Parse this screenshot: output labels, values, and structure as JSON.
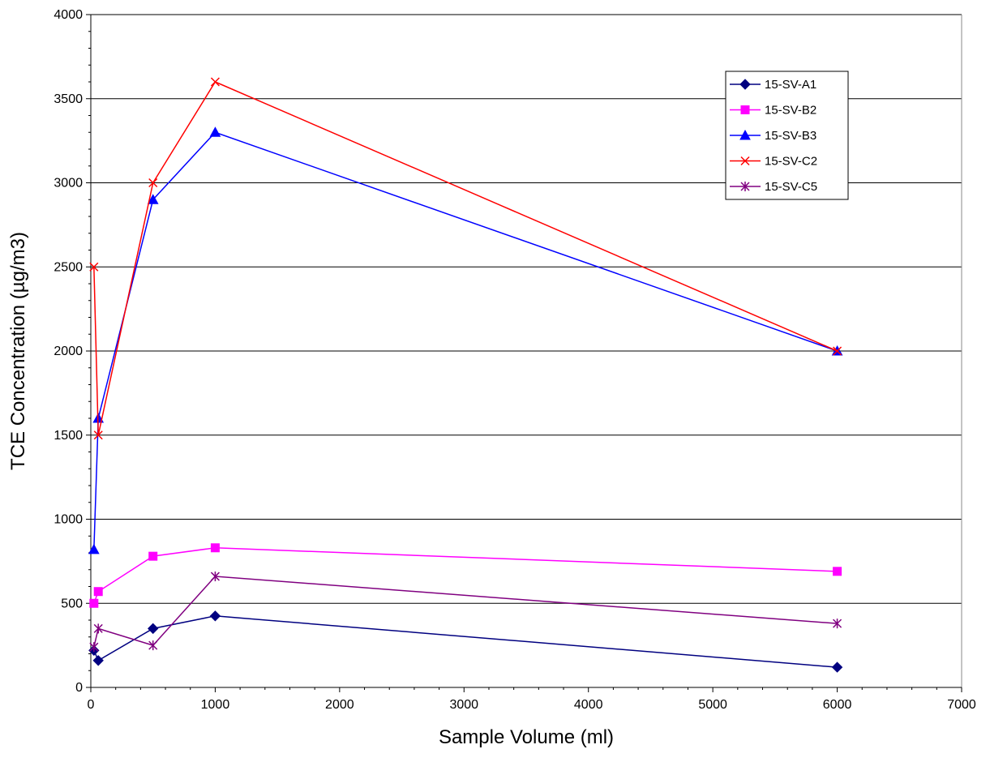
{
  "chart_data": {
    "type": "line",
    "title": "",
    "xlabel": "Sample Volume (ml)",
    "ylabel": "TCE Concentration (µg/m3)",
    "xlim": [
      0,
      7000
    ],
    "ylim": [
      0,
      4000
    ],
    "xticks": [
      0,
      1000,
      2000,
      3000,
      4000,
      5000,
      6000,
      7000
    ],
    "yticks": [
      0,
      500,
      1000,
      1500,
      2000,
      2500,
      3000,
      3500,
      4000
    ],
    "grid": "horizontal major gridlines",
    "legend_position": "top-right",
    "series": [
      {
        "name": "15-SV-A1",
        "color": "#000080",
        "marker": "diamond",
        "points": [
          [
            25,
            220
          ],
          [
            60,
            160
          ],
          [
            500,
            350
          ],
          [
            1000,
            425
          ],
          [
            6000,
            120
          ]
        ]
      },
      {
        "name": "15-SV-B2",
        "color": "#FF00FF",
        "marker": "square",
        "points": [
          [
            25,
            500
          ],
          [
            60,
            570
          ],
          [
            500,
            780
          ],
          [
            1000,
            830
          ],
          [
            6000,
            690
          ]
        ]
      },
      {
        "name": "15-SV-B3",
        "color": "#0000FF",
        "marker": "triangle",
        "points": [
          [
            25,
            820
          ],
          [
            60,
            1600
          ],
          [
            500,
            2900
          ],
          [
            1000,
            3300
          ],
          [
            6000,
            2000
          ]
        ]
      },
      {
        "name": "15-SV-C2",
        "color": "#FF0000",
        "marker": "x",
        "points": [
          [
            25,
            2500
          ],
          [
            60,
            1500
          ],
          [
            500,
            3000
          ],
          [
            1000,
            3600
          ],
          [
            6000,
            2000
          ]
        ]
      },
      {
        "name": "15-SV-C5",
        "color": "#800080",
        "marker": "star",
        "points": [
          [
            25,
            240
          ],
          [
            60,
            350
          ],
          [
            500,
            250
          ],
          [
            1000,
            660
          ],
          [
            6000,
            380
          ]
        ]
      }
    ]
  }
}
